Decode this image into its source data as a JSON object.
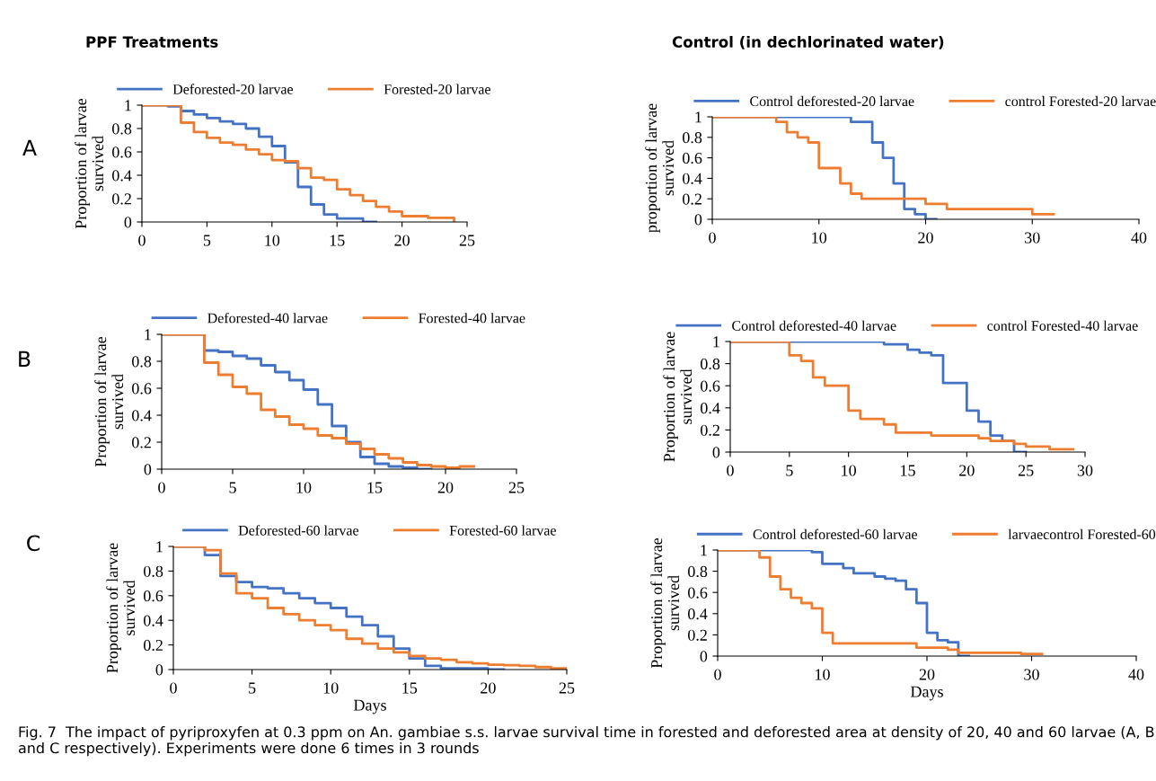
{
  "chart_data": [
    {
      "type": "step",
      "ylabel": "Proportion of larvae\nsurvived",
      "annotations": [
        "PPF Treatments",
        "A"
      ],
      "xlim": [
        0,
        25
      ],
      "xticks": [
        0,
        5,
        10,
        15,
        20,
        25
      ],
      "ylim": [
        0,
        1
      ],
      "yticks": [
        0,
        0.2,
        0.4,
        0.6,
        0.8,
        1
      ],
      "legend": "top",
      "grid": false,
      "series": [
        {
          "name": "Deforested-20 larvae",
          "color": "#4472c4",
          "x": [
            0,
            2,
            3,
            4,
            5,
            6,
            7,
            8,
            9,
            10,
            11,
            12,
            13,
            14,
            15,
            16,
            17,
            18
          ],
          "values": [
            1,
            0.99,
            0.95,
            0.92,
            0.89,
            0.86,
            0.84,
            0.8,
            0.73,
            0.65,
            0.51,
            0.3,
            0.15,
            0.065,
            0.03,
            0.03,
            0,
            0
          ]
        },
        {
          "name": "Forested-20 larvae",
          "color": "#ed7d31",
          "x": [
            0,
            3,
            4,
            5,
            6,
            7,
            8,
            9,
            10,
            11,
            12,
            13,
            14,
            15,
            16,
            17,
            18,
            19,
            20,
            22,
            24
          ],
          "values": [
            1,
            0.85,
            0.77,
            0.72,
            0.68,
            0.66,
            0.62,
            0.58,
            0.53,
            0.52,
            0.46,
            0.38,
            0.36,
            0.28,
            0.23,
            0.18,
            0.13,
            0.09,
            0.05,
            0.035,
            0
          ]
        }
      ]
    },
    {
      "type": "step",
      "ylabel": "proportion of larvae\nsurvived",
      "annotations": [
        "Control (in dechlorinated water)"
      ],
      "xlim": [
        0,
        40
      ],
      "xticks": [
        0,
        10,
        20,
        30,
        40
      ],
      "ylim": [
        0,
        1
      ],
      "yticks": [
        0,
        0.2,
        0.4,
        0.6,
        0.8,
        1
      ],
      "legend": "top",
      "grid": false,
      "series": [
        {
          "name": "Control deforested-20 larvae",
          "color": "#4472c4",
          "x": [
            0,
            13,
            15,
            16,
            17,
            18,
            19,
            20,
            21
          ],
          "values": [
            1,
            0.95,
            0.75,
            0.6,
            0.35,
            0.1,
            0.05,
            0,
            0
          ]
        },
        {
          "name": "control Forested-20 larvae",
          "color": "#ed7d31",
          "x": [
            0,
            6,
            7,
            8,
            9,
            10,
            12,
            13,
            14,
            20,
            22,
            30,
            32
          ],
          "values": [
            1,
            0.95,
            0.85,
            0.8,
            0.75,
            0.5,
            0.35,
            0.25,
            0.2,
            0.15,
            0.1,
            0.05,
            0.05
          ]
        }
      ]
    },
    {
      "type": "step",
      "ylabel": "Proportion of larvae\nsurvived",
      "annotations": [
        "B"
      ],
      "xlim": [
        0,
        25
      ],
      "xticks": [
        0,
        5,
        10,
        15,
        20,
        25
      ],
      "ylim": [
        0,
        1
      ],
      "yticks": [
        0,
        0.2,
        0.4,
        0.6,
        0.8,
        1
      ],
      "legend": "top",
      "grid": false,
      "series": [
        {
          "name": "Deforested-40 larvae",
          "color": "#4472c4",
          "x": [
            0,
            3,
            4,
            5,
            6,
            7,
            8,
            9,
            10,
            11,
            12,
            13,
            14,
            15,
            16,
            17,
            18,
            19
          ],
          "values": [
            1,
            0.88,
            0.87,
            0.84,
            0.82,
            0.77,
            0.72,
            0.66,
            0.59,
            0.48,
            0.32,
            0.2,
            0.09,
            0.04,
            0.02,
            0.01,
            0,
            0
          ]
        },
        {
          "name": "Forested-40 larvae",
          "color": "#ed7d31",
          "x": [
            0,
            3,
            4,
            5,
            6,
            7,
            8,
            9,
            10,
            11,
            12,
            13,
            14,
            15,
            16,
            17,
            18,
            19,
            20,
            21,
            22
          ],
          "values": [
            1,
            0.79,
            0.7,
            0.61,
            0.56,
            0.44,
            0.39,
            0.33,
            0.3,
            0.25,
            0.23,
            0.19,
            0.15,
            0.11,
            0.08,
            0.05,
            0.03,
            0.02,
            0.01,
            0.02,
            0.02
          ]
        }
      ]
    },
    {
      "type": "step",
      "ylabel": "Proportion of larvae\nsurvived",
      "xlim": [
        0,
        30
      ],
      "xticks": [
        0,
        5,
        10,
        15,
        20,
        25,
        30
      ],
      "ylim": [
        0,
        1
      ],
      "yticks": [
        0,
        0.2,
        0.4,
        0.6,
        0.8,
        1
      ],
      "legend": "top",
      "grid": false,
      "series": [
        {
          "name": "Control deforested-40 larvae",
          "color": "#4472c4",
          "x": [
            0,
            13,
            15,
            16,
            17,
            18,
            20,
            21,
            22,
            23,
            24,
            25
          ],
          "values": [
            1,
            0.975,
            0.925,
            0.9,
            0.875,
            0.625,
            0.375,
            0.275,
            0.15,
            0.1,
            0,
            0
          ]
        },
        {
          "name": "control Forested-40 larvae",
          "color": "#ed7d31",
          "x": [
            0,
            5,
            6,
            7,
            8,
            10,
            11,
            13,
            14,
            17,
            21,
            22,
            24,
            25,
            27,
            29
          ],
          "values": [
            1,
            0.875,
            0.825,
            0.675,
            0.6,
            0.375,
            0.3,
            0.25,
            0.175,
            0.15,
            0.125,
            0.1,
            0.075,
            0.05,
            0.025,
            0.025
          ]
        }
      ]
    },
    {
      "type": "step",
      "xlabel": "Days",
      "ylabel": "Proportion of larvae\nsurvived",
      "annotations": [
        "C"
      ],
      "xlim": [
        0,
        25
      ],
      "xticks": [
        0,
        5,
        10,
        15,
        20,
        25
      ],
      "ylim": [
        0,
        1
      ],
      "yticks": [
        0,
        0.2,
        0.4,
        0.6,
        0.8,
        1
      ],
      "legend": "top",
      "grid": false,
      "series": [
        {
          "name": "Deforested-60 larvae",
          "color": "#4472c4",
          "x": [
            0,
            2,
            3,
            4,
            5,
            6,
            7,
            8,
            9,
            10,
            11,
            12,
            13,
            14,
            15,
            16,
            17,
            20,
            21
          ],
          "values": [
            1,
            0.93,
            0.76,
            0.71,
            0.67,
            0.66,
            0.62,
            0.58,
            0.54,
            0.5,
            0.43,
            0.36,
            0.27,
            0.17,
            0.09,
            0.03,
            0.01,
            0,
            0
          ]
        },
        {
          "name": "Forested-60 larvae",
          "color": "#ed7d31",
          "x": [
            0,
            2,
            3,
            4,
            5,
            6,
            7,
            8,
            9,
            10,
            11,
            12,
            13,
            14,
            15,
            16,
            17,
            18,
            19,
            20,
            21,
            22,
            23,
            24,
            25
          ],
          "values": [
            1,
            0.97,
            0.78,
            0.62,
            0.58,
            0.5,
            0.45,
            0.4,
            0.36,
            0.32,
            0.25,
            0.21,
            0.17,
            0.14,
            0.11,
            0.09,
            0.08,
            0.06,
            0.05,
            0.04,
            0.035,
            0.03,
            0.02,
            0.01,
            0
          ]
        }
      ]
    },
    {
      "type": "step",
      "xlabel": "Days",
      "ylabel": "Proportion of larvae\nsurvived",
      "annotations": [
        "Fig. 7  The impact of pyriproxyfen at 0.3 ppm on An. gambiae s.s. larvae survival time in forested and deforested area at density of 20, 40 and 60 larvae (A, B and C respectively). Experiments were done 6 times in 3 rounds"
      ],
      "xlim": [
        0,
        40
      ],
      "xticks": [
        0,
        10,
        20,
        30,
        40
      ],
      "ylim": [
        0,
        1
      ],
      "yticks": [
        0,
        0.2,
        0.4,
        0.6,
        0.8,
        1
      ],
      "legend": "top",
      "grid": false,
      "series": [
        {
          "name": "Control deforested-60 larvae",
          "color": "#4472c4",
          "x": [
            0,
            9,
            10,
            12,
            13,
            15,
            16,
            17,
            18,
            19,
            20,
            21,
            22,
            23,
            24
          ],
          "values": [
            1,
            0.98,
            0.87,
            0.83,
            0.78,
            0.75,
            0.73,
            0.71,
            0.63,
            0.5,
            0.22,
            0.15,
            0.13,
            0,
            0
          ]
        },
        {
          "name": "larvaecontrol Forested-60",
          "color": "#ed7d31",
          "x": [
            0,
            4,
            5,
            6,
            7,
            8,
            9,
            10,
            11,
            19,
            22,
            23,
            29,
            31
          ],
          "values": [
            1,
            0.93,
            0.75,
            0.63,
            0.55,
            0.5,
            0.45,
            0.22,
            0.12,
            0.08,
            0.06,
            0.03,
            0.02,
            0.02
          ]
        }
      ]
    }
  ]
}
